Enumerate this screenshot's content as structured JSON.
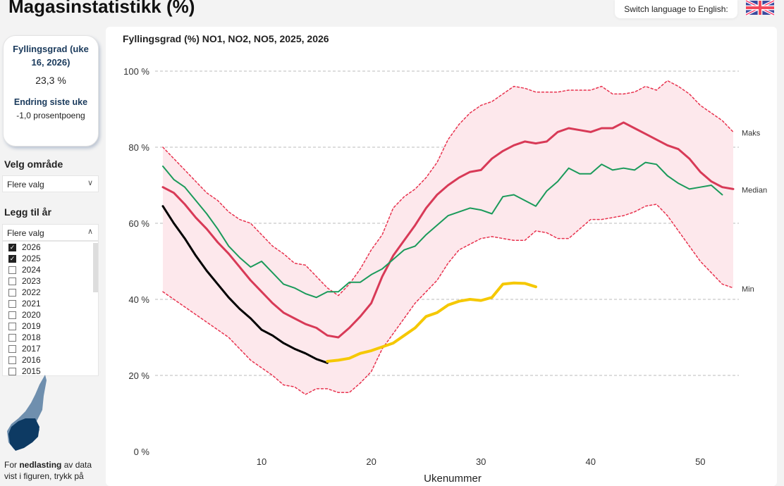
{
  "header": {
    "title": "Magasinstatistikk (%)",
    "switch_language": "Switch language to English:",
    "flag_icon": "uk-flag-icon"
  },
  "kpi": {
    "heading": "Fyllingsgrad (uke 16, 2026)",
    "value": "23,3 %",
    "change_heading": "Endring siste uke",
    "change_value": "-1,0 prosentpoeng"
  },
  "area_filter": {
    "label": "Velg område",
    "value": "Flere valg"
  },
  "year_filter": {
    "label": "Legg til år",
    "value": "Flere valg",
    "years": [
      {
        "y": "2026",
        "checked": true
      },
      {
        "y": "2025",
        "checked": true
      },
      {
        "y": "2024",
        "checked": false
      },
      {
        "y": "2023",
        "checked": false
      },
      {
        "y": "2022",
        "checked": false
      },
      {
        "y": "2021",
        "checked": false
      },
      {
        "y": "2020",
        "checked": false
      },
      {
        "y": "2019",
        "checked": false
      },
      {
        "y": "2018",
        "checked": false
      },
      {
        "y": "2017",
        "checked": false
      },
      {
        "y": "2016",
        "checked": false
      },
      {
        "y": "2015",
        "checked": false
      }
    ]
  },
  "download": {
    "prefix": "For ",
    "bold": "nedlasting",
    "suffix": " av data vist i figuren, trykk på"
  },
  "chart_data": {
    "type": "line",
    "title": "Fyllingsgrad (%) NO1, NO2, NO5, 2025, 2026",
    "xlabel": "Ukenummer",
    "ylabel": "",
    "xlim": [
      1,
      53
    ],
    "ylim": [
      0,
      100
    ],
    "xticks": [
      10,
      20,
      30,
      40,
      50
    ],
    "yticks": [
      {
        "v": 0,
        "label": "0 %"
      },
      {
        "v": 20,
        "label": "20 %"
      },
      {
        "v": 40,
        "label": "40 %"
      },
      {
        "v": 60,
        "label": "60 %"
      },
      {
        "v": 80,
        "label": "80 %"
      },
      {
        "v": 100,
        "label": "100 %"
      }
    ],
    "grid": true,
    "series": [
      {
        "name": "Maks",
        "color": "#e8334f",
        "style": "dotted",
        "start_week": 1,
        "values": [
          80,
          77,
          74,
          71,
          68,
          66,
          63,
          61,
          60,
          57,
          54,
          52,
          49.5,
          49,
          46,
          43,
          41,
          44,
          48,
          53,
          57,
          64,
          67,
          69,
          72,
          76,
          82,
          86,
          89,
          91,
          92,
          94,
          96,
          95.5,
          94.5,
          94.5,
          94.5,
          95,
          95,
          95,
          96,
          94,
          94,
          94.5,
          96,
          95,
          97.5,
          96,
          94,
          91,
          89,
          87,
          84
        ]
      },
      {
        "name": "Median",
        "color": "#d83a57",
        "style": "solid",
        "start_week": 1,
        "values": [
          69.5,
          68,
          65,
          61.5,
          58.5,
          55,
          52,
          48.5,
          45,
          42,
          39,
          36.5,
          35,
          33.5,
          32.5,
          30.5,
          30,
          32.5,
          35.5,
          39,
          46,
          51.5,
          55.5,
          59.5,
          64,
          67.5,
          70,
          72,
          73.5,
          74,
          77,
          79,
          80.5,
          81.5,
          81,
          81.5,
          84,
          85,
          84.5,
          84,
          85,
          85,
          86.5,
          85,
          83.5,
          82,
          80.5,
          79.5,
          77,
          73.5,
          71,
          69.5,
          69
        ]
      },
      {
        "name": "Min",
        "color": "#e8334f",
        "style": "dotted",
        "start_week": 1,
        "values": [
          42,
          40,
          38,
          36,
          34,
          32,
          30,
          27,
          24,
          22,
          20,
          17.5,
          17,
          15,
          16.5,
          16.5,
          15.5,
          15.5,
          18,
          21,
          27,
          31,
          35,
          39,
          42,
          45,
          49.5,
          53,
          54.5,
          56,
          56.5,
          56,
          55.5,
          55.5,
          58,
          57.5,
          56,
          56,
          58.5,
          61,
          61,
          61.5,
          62,
          63,
          64.5,
          65,
          62,
          58,
          54,
          50,
          47,
          44,
          43
        ]
      },
      {
        "color": "#1a9a5a",
        "style": "solid",
        "start_week": 1,
        "values": [
          75,
          71.5,
          69.5,
          66,
          62.5,
          58.5,
          54,
          51,
          48.5,
          50,
          47,
          44,
          43,
          41.5,
          40.5,
          42,
          42,
          44.5,
          44.5,
          46.5,
          48,
          50.5,
          53,
          54,
          57,
          59.5,
          62,
          63,
          64,
          63.5,
          62.5,
          67,
          67.5,
          66,
          64.5,
          68.5,
          71,
          74.5,
          73,
          73,
          75.5,
          74,
          74.5,
          74,
          76,
          75.5,
          72.5,
          70.5,
          69,
          69.5,
          70,
          67.5
        ]
      },
      {
        "color": "#000000",
        "style": "solid",
        "start_week": 1,
        "values": [
          64.5,
          60,
          56,
          51.5,
          47.5,
          44,
          40.5,
          37.5,
          35,
          32,
          30.5,
          28.5,
          27,
          25.8,
          24.3,
          23.3
        ]
      },
      {
        "color": "#f5c800",
        "style": "thick",
        "start_week": 16,
        "values": [
          23.7,
          24,
          24.5,
          25.8,
          26.5,
          27.5,
          28.5,
          30.5,
          32.5,
          35.5,
          36.5,
          38.5,
          39.5,
          40,
          39.7,
          40.5,
          44,
          44.3,
          44.2,
          43.3
        ]
      }
    ],
    "band": {
      "between": [
        "Min",
        "Maks"
      ],
      "color": "#fde8ec"
    }
  }
}
